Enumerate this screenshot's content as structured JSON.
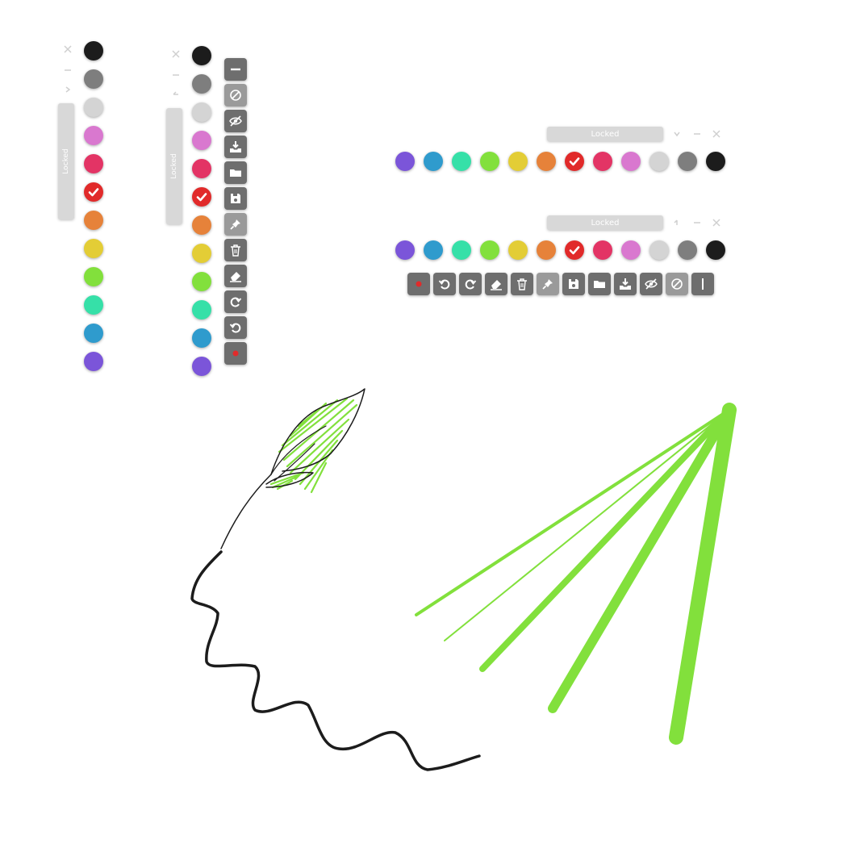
{
  "locked_label": "Locked",
  "colors": {
    "purple": "#7b55d9",
    "blue": "#2f9bcd",
    "teal": "#36e0a8",
    "green": "#82e03c",
    "yellow": "#e3cd36",
    "orange": "#e6823a",
    "red": "#e12a2a",
    "pink": "#e33465",
    "violet": "#d978cf",
    "light_gray": "#d4d4d4",
    "gray": "#7e7e7e",
    "black": "#1c1c1c"
  },
  "selected_color": "red",
  "toolbar": {
    "tools": [
      "record-icon",
      "undo-icon",
      "redo-icon",
      "eraser-icon",
      "trash-icon",
      "pin-icon",
      "save-icon",
      "folder-icon",
      "import-icon",
      "hide-icon",
      "disable-icon",
      "line-width-icon"
    ]
  },
  "canvas": {
    "stroke_color_primary": "#82e03c",
    "stroke_color_ink": "#1c1c1c"
  }
}
